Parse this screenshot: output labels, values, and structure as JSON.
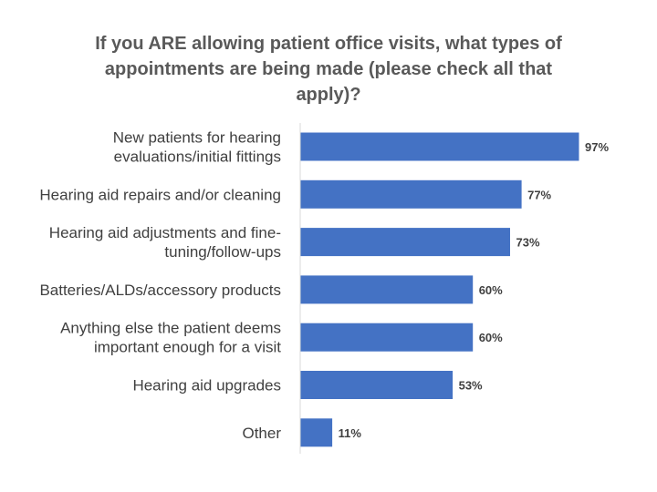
{
  "chart_data": {
    "type": "bar",
    "orientation": "horizontal",
    "title": [
      "If you ARE allowing patient office visits, what types of",
      "appointments are being made (please check all that",
      "apply)?"
    ],
    "categories": [
      [
        "New patients for hearing",
        "evaluations/initial fittings"
      ],
      [
        "Hearing aid repairs and/or cleaning"
      ],
      [
        "Hearing aid adjustments and fine-",
        "tuning/follow-ups"
      ],
      [
        "Batteries/ALDs/accessory products"
      ],
      [
        "Anything else the patient deems",
        "important enough for a visit"
      ],
      [
        "Hearing aid upgrades"
      ],
      [
        "Other"
      ]
    ],
    "values": [
      97,
      77,
      73,
      60,
      60,
      53,
      11
    ],
    "value_labels": [
      "97%",
      "77%",
      "73%",
      "60%",
      "60%",
      "53%",
      "11%"
    ],
    "unit": "%",
    "xlim": [
      0,
      100
    ],
    "grid": false,
    "legend": "none",
    "bar_color": "#4472C4",
    "axis_color": "#D9D9D9"
  }
}
